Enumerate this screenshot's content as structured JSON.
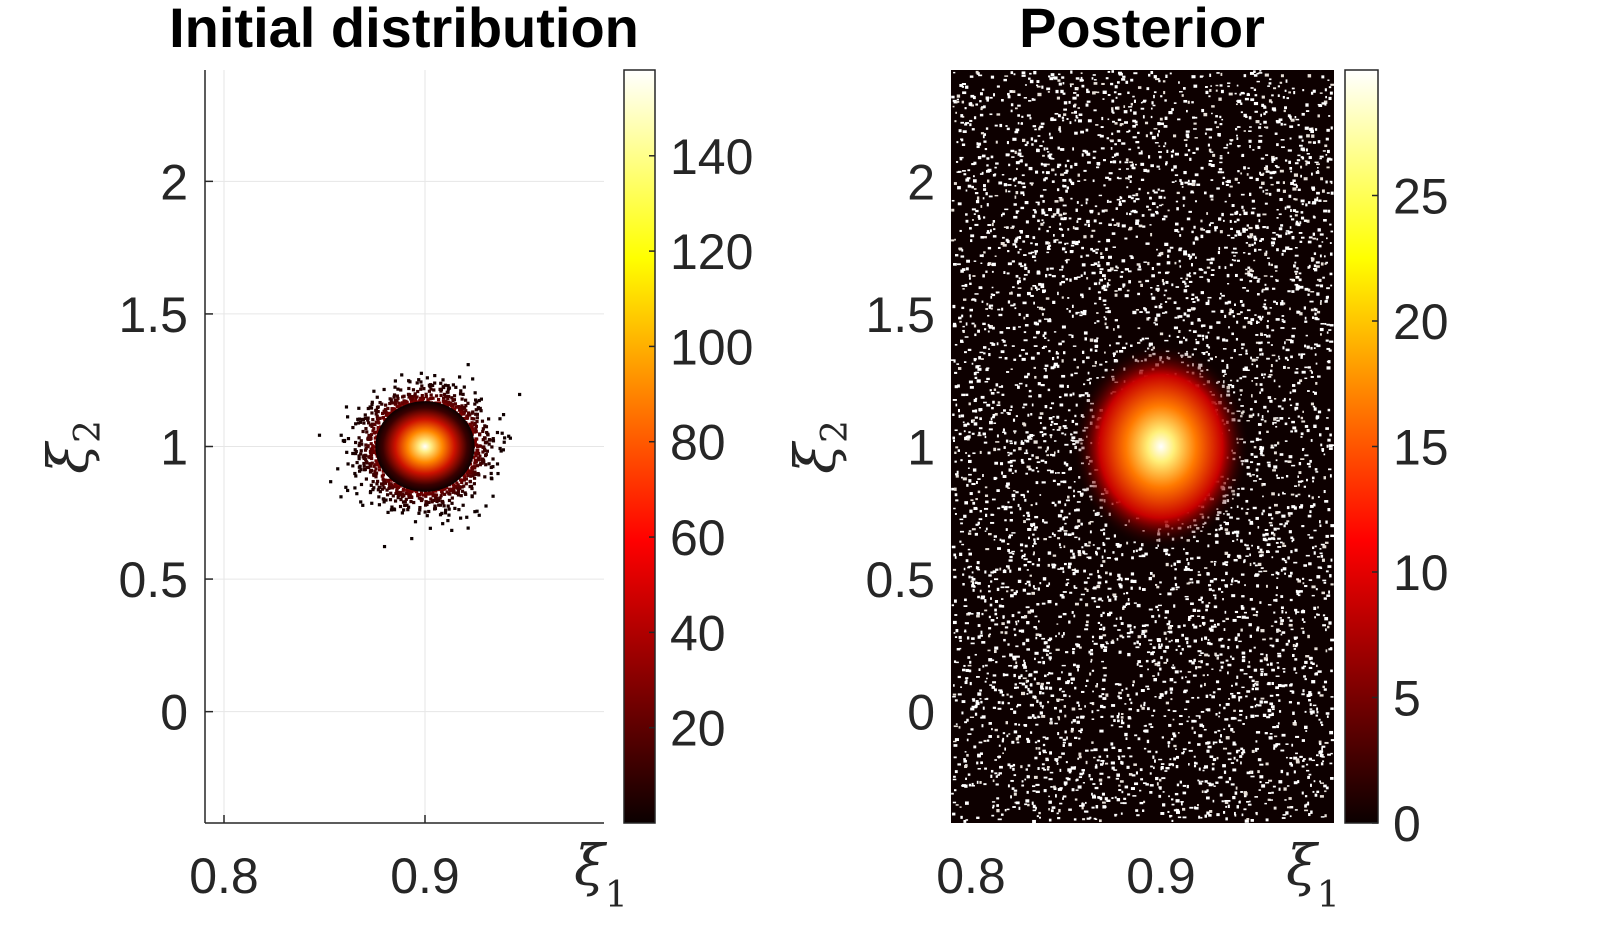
{
  "chart_data": [
    {
      "type": "scatter",
      "title": "Initial distribution",
      "xlabel": "ξ",
      "xlabel_sub": "1",
      "ylabel": "ξ",
      "ylabel_sub": "2",
      "xlim": [
        0.79,
        0.98
      ],
      "ylim": [
        -0.42,
        2.42
      ],
      "xticks": [
        0.8,
        0.9
      ],
      "xticklabels": [
        "0.8",
        "0.9"
      ],
      "yticks": [
        0,
        0.5,
        1,
        1.5,
        2
      ],
      "yticklabels": [
        "0",
        "0.5",
        "1",
        "1.5",
        "2"
      ],
      "grid": true,
      "colormap": "hot",
      "distribution": {
        "shape": "gaussian",
        "center": [
          0.9,
          1.0
        ],
        "std": [
          0.013,
          0.09
        ],
        "points": 4500
      },
      "colorbar": {
        "range": [
          0,
          158
        ],
        "ticks": [
          20,
          40,
          60,
          80,
          100,
          120,
          140
        ],
        "ticklabels": [
          "20",
          "40",
          "60",
          "80",
          "100",
          "120",
          "140"
        ]
      }
    },
    {
      "type": "scatter",
      "title": "Posterior",
      "xlabel": "ξ",
      "xlabel_sub": "1",
      "ylabel": "ξ",
      "ylabel_sub": "2",
      "xlim": [
        0.79,
        0.98
      ],
      "ylim": [
        -0.42,
        2.42
      ],
      "xticks": [
        0.8,
        0.9
      ],
      "xticklabels": [
        "0.8",
        "0.9"
      ],
      "yticks": [
        0,
        0.5,
        1,
        1.5,
        2
      ],
      "yticklabels": [
        "0",
        "0.5",
        "1",
        "1.5",
        "2"
      ],
      "grid": false,
      "colormap": "hot",
      "distribution": {
        "shape": "gaussian-on-uniform",
        "center": [
          0.9,
          1.0
        ],
        "std": [
          0.011,
          0.11
        ],
        "background": "black-speckled"
      },
      "colorbar": {
        "range": [
          0,
          30
        ],
        "ticks": [
          0,
          5,
          10,
          15,
          20,
          25
        ],
        "ticklabels": [
          "0",
          "5",
          "10",
          "15",
          "20",
          "25"
        ]
      }
    }
  ]
}
